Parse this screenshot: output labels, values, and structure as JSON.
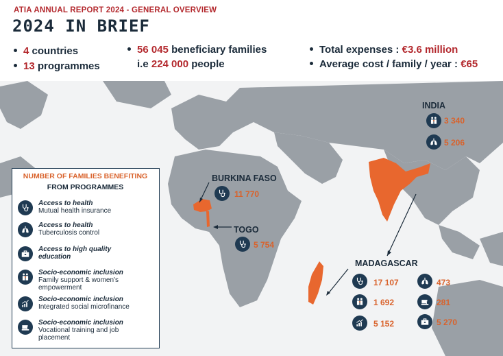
{
  "header": {
    "kicker": "ATIA ANNUAL REPORT 2024 - GENERAL OVERVIEW",
    "title": "2024 IN BRIEF",
    "stats": {
      "countries_num": "4",
      "countries_text": "countries",
      "programmes_num": "13",
      "programmes_text": "programmes",
      "families_num": "56 045",
      "families_text": "beneficiary families",
      "people_pre": "i.e",
      "people_num": "224 000",
      "people_text": "people",
      "expenses_text": "Total expenses :",
      "expenses_num": "€3.6 million",
      "cost_text": "Average cost / family / year :",
      "cost_num": "€65"
    }
  },
  "legend": {
    "title_line1": "NUMBER OF FAMILIES BENEFITING",
    "title_line2": "FROM PROGRAMMES",
    "items": [
      {
        "title": "Access to health",
        "desc": "Mutual health insurance",
        "icon": "stethoscope-icon"
      },
      {
        "title": "Access to health",
        "desc": "Tuberculosis control",
        "icon": "lungs-icon"
      },
      {
        "title": "Access to high quality education",
        "desc": "",
        "icon": "briefcase-icon"
      },
      {
        "title": "Socio-economic inclusion",
        "desc": "Family support & women's empowerment",
        "icon": "family-icon"
      },
      {
        "title": "Socio-economic inclusion",
        "desc": "Integrated social microfinance",
        "icon": "bar-chart-icon"
      },
      {
        "title": "Socio-economic inclusion",
        "desc": "Vocational training and job placement",
        "icon": "sewing-machine-icon"
      }
    ]
  },
  "countries": {
    "india": {
      "name": "INDIA",
      "family": "3 340",
      "lungs": "5 206"
    },
    "burkina": {
      "name": "BURKINA FASO",
      "health": "11 770"
    },
    "togo": {
      "name": "TOGO",
      "health": "5 754"
    },
    "madagascar": {
      "name": "MADAGASCAR",
      "health": "17 107",
      "lungs": "473",
      "family": "1 692",
      "sewing": "281",
      "microfinance": "5 152",
      "education": "5 270"
    }
  },
  "colors": {
    "accent_red": "#b3282d",
    "accent_orange": "#d9622b",
    "navy": "#1f3a52",
    "land": "#9aa0a6"
  }
}
